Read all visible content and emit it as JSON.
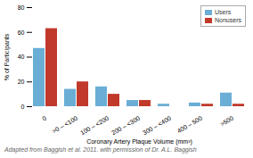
{
  "chart_data": {
    "type": "bar",
    "categories": [
      "0",
      ">0 – <100",
      "100 – <200",
      "200 – <300",
      "300 – <400",
      "400 – 500",
      ">500"
    ],
    "series": [
      {
        "name": "Users",
        "color": "#6aaed6",
        "values": [
          47,
          14,
          16,
          5,
          2,
          3,
          11
        ]
      },
      {
        "name": "Nonusers",
        "color": "#c0392b",
        "values": [
          63,
          20,
          10,
          5,
          0,
          2,
          2
        ]
      }
    ],
    "xlabel": "Coronary Artery Plaque Volume (mm³)",
    "ylabel": "% of Participants",
    "ylim": [
      0,
      80
    ],
    "yticks": [
      0,
      20,
      40,
      60,
      80
    ],
    "legend": "upper right",
    "annotations": [
      "Adapted from Baggish et al. 2011. with permission of Dr. A.L. Baggish"
    ]
  }
}
